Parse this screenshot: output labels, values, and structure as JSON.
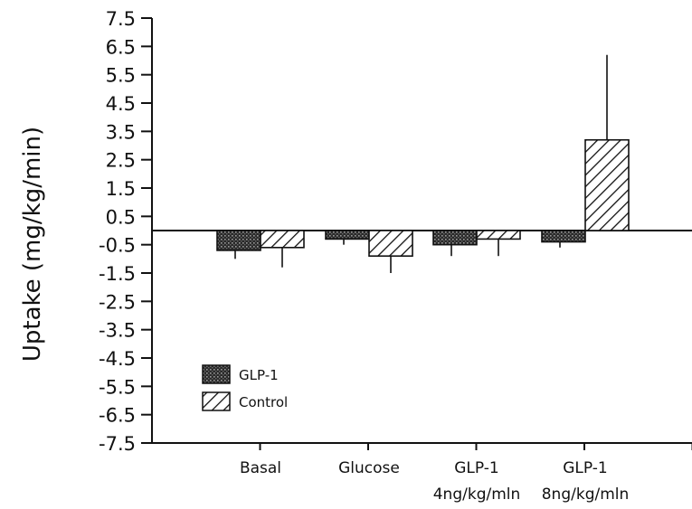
{
  "chart_data": {
    "type": "bar",
    "title": "",
    "xlabel": "",
    "ylabel": "Uptake (mg/kg/min)",
    "ylim": [
      -7.5,
      7.5
    ],
    "yticks": [
      "7.5",
      "6.5",
      "5.5",
      "4.5",
      "3.5",
      "2.5",
      "1.5",
      "0.5",
      "-0.5",
      "-1.5",
      "-2.5",
      "-3.5",
      "-4.5",
      "-5.5",
      "-6.5",
      "-7.5"
    ],
    "categories": [
      {
        "line1": "Basal",
        "line2": ""
      },
      {
        "line1": "Glucose",
        "line2": ""
      },
      {
        "line1": "GLP-1",
        "line2": "4ng/kg/mln"
      },
      {
        "line1": "GLP-1",
        "line2": "8ng/kg/mln"
      }
    ],
    "series": [
      {
        "name": "GLP-1",
        "values": [
          -0.7,
          -0.3,
          -0.5,
          -0.4
        ],
        "errors": [
          0.3,
          0.2,
          0.4,
          0.2
        ],
        "color": "#444444",
        "pattern": "dots"
      },
      {
        "name": "Control",
        "values": [
          -0.6,
          -0.9,
          -0.3,
          3.2
        ],
        "errors": [
          0.7,
          0.6,
          0.6,
          3.0
        ],
        "color": "#111111",
        "pattern": "hatch"
      }
    ],
    "grid": false,
    "legend": "lower-left"
  }
}
